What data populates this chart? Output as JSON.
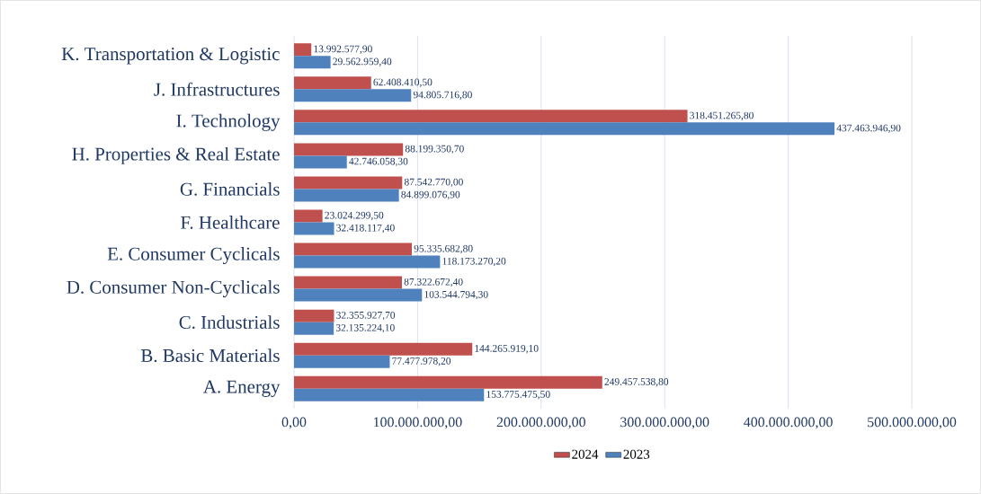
{
  "chart_data": {
    "type": "bar",
    "orientation": "horizontal",
    "categories": [
      "K. Transportation & Logistic",
      "J. Infrastructures",
      "I. Technology",
      "H. Properties & Real Estate",
      "G. Financials",
      "F. Healthcare",
      "E. Consumer Cyclicals",
      "D. Consumer Non-Cyclicals",
      "C. Industrials",
      "B. Basic Materials",
      "A. Energy"
    ],
    "series": [
      {
        "name": "2024",
        "color": "#c0504d",
        "values": [
          13992577.9,
          62408410.5,
          318451265.8,
          88199350.7,
          87542770.0,
          23024299.5,
          95335682.8,
          87322672.4,
          32355927.7,
          144265919.1,
          249457538.8
        ],
        "value_labels": [
          "13.992.577,90",
          "62.408.410,50",
          "318.451.265,80",
          "88.199.350,70",
          "87.542.770,00",
          "23.024.299,50",
          "95.335.682,80",
          "87.322.672,40",
          "32.355.927,70",
          "144.265.919,10",
          "249.457.538,80"
        ]
      },
      {
        "name": "2023",
        "color": "#4f81bd",
        "values": [
          29562959.4,
          94805716.8,
          437463946.9,
          42746058.3,
          84899076.9,
          32418117.4,
          118173270.2,
          103544794.3,
          32135224.1,
          77477978.2,
          153775475.5
        ],
        "value_labels": [
          "29.562.959,40",
          "94.805.716,80",
          "437.463.946,90",
          "42.746.058,30",
          "84.899.076,90",
          "32.418.117,40",
          "118.173.270,20",
          "103.544.794,30",
          "32.135.224,10",
          "77.477.978,20",
          "153.775.475,50"
        ]
      }
    ],
    "xlim": [
      0,
      500000000
    ],
    "xticks": [
      {
        "value": 0,
        "label": "0,00"
      },
      {
        "value": 100000000,
        "label": "100.000.000,00"
      },
      {
        "value": 200000000,
        "label": "200.000.000,00"
      },
      {
        "value": 300000000,
        "label": "300.000.000,00"
      },
      {
        "value": 400000000,
        "label": "400.000.000,00"
      },
      {
        "value": 500000000,
        "label": "500.000.000,00"
      }
    ],
    "grid": "x",
    "legend": "bottom"
  }
}
